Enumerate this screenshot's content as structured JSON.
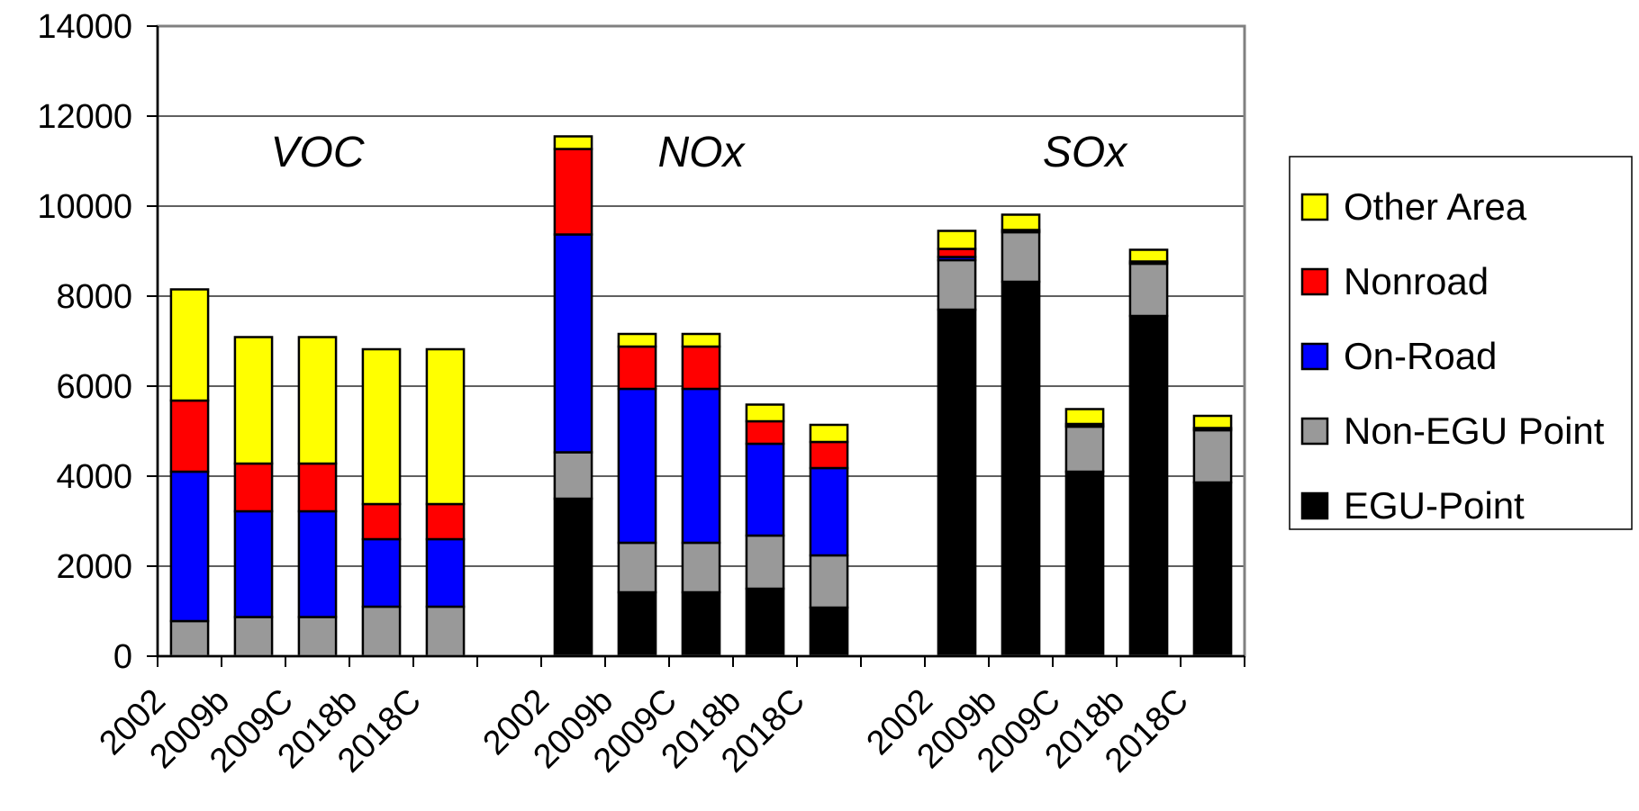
{
  "chart_data": {
    "type": "bar",
    "stacked": true,
    "ylim": [
      0,
      14000
    ],
    "yticks": [
      0,
      2000,
      4000,
      6000,
      8000,
      10000,
      12000,
      14000
    ],
    "grid": true,
    "legend_position": "right",
    "stack_order": [
      "EGU-Point",
      "Non-EGU Point",
      "On-Road",
      "Nonroad",
      "Other Area"
    ],
    "legend_order": [
      "Other Area",
      "Nonroad",
      "On-Road",
      "Non-EGU Point",
      "EGU-Point"
    ],
    "colors": {
      "EGU-Point": "#000000",
      "Non-EGU Point": "#999999",
      "On-Road": "#0000ff",
      "Nonroad": "#ff0000",
      "Other Area": "#ffff00"
    },
    "groups": [
      {
        "label": "VOC",
        "bars": [
          {
            "category": "2002",
            "values": {
              "EGU-Point": 0,
              "Non-EGU Point": 780,
              "On-Road": 3320,
              "Nonroad": 1580,
              "Other Area": 2470
            }
          },
          {
            "category": "2009b",
            "values": {
              "EGU-Point": 0,
              "Non-EGU Point": 870,
              "On-Road": 2350,
              "Nonroad": 1060,
              "Other Area": 2810
            }
          },
          {
            "category": "2009C",
            "values": {
              "EGU-Point": 0,
              "Non-EGU Point": 870,
              "On-Road": 2350,
              "Nonroad": 1060,
              "Other Area": 2810
            }
          },
          {
            "category": "2018b",
            "values": {
              "EGU-Point": 0,
              "Non-EGU Point": 1100,
              "On-Road": 1500,
              "Nonroad": 780,
              "Other Area": 3440
            }
          },
          {
            "category": "2018C",
            "values": {
              "EGU-Point": 0,
              "Non-EGU Point": 1100,
              "On-Road": 1500,
              "Nonroad": 780,
              "Other Area": 3440
            }
          }
        ]
      },
      {
        "label": "NOx",
        "bars": [
          {
            "category": "2002",
            "values": {
              "EGU-Point": 3500,
              "Non-EGU Point": 1030,
              "On-Road": 4840,
              "Nonroad": 1900,
              "Other Area": 280
            }
          },
          {
            "category": "2009b",
            "values": {
              "EGU-Point": 1420,
              "Non-EGU Point": 1100,
              "On-Road": 3420,
              "Nonroad": 940,
              "Other Area": 280
            }
          },
          {
            "category": "2009C",
            "values": {
              "EGU-Point": 1420,
              "Non-EGU Point": 1100,
              "On-Road": 3420,
              "Nonroad": 940,
              "Other Area": 280
            }
          },
          {
            "category": "2018b",
            "values": {
              "EGU-Point": 1500,
              "Non-EGU Point": 1180,
              "On-Road": 2040,
              "Nonroad": 500,
              "Other Area": 370
            }
          },
          {
            "category": "2018C",
            "values": {
              "EGU-Point": 1080,
              "Non-EGU Point": 1160,
              "On-Road": 1940,
              "Nonroad": 580,
              "Other Area": 380
            }
          }
        ]
      },
      {
        "label": "SOx",
        "bars": [
          {
            "category": "2002",
            "values": {
              "EGU-Point": 7700,
              "Non-EGU Point": 1100,
              "On-Road": 70,
              "Nonroad": 180,
              "Other Area": 400
            }
          },
          {
            "category": "2009b",
            "values": {
              "EGU-Point": 8320,
              "Non-EGU Point": 1100,
              "On-Road": 20,
              "Nonroad": 30,
              "Other Area": 340
            }
          },
          {
            "category": "2009C",
            "values": {
              "EGU-Point": 4100,
              "Non-EGU Point": 1000,
              "On-Road": 20,
              "Nonroad": 40,
              "Other Area": 330
            }
          },
          {
            "category": "2018b",
            "values": {
              "EGU-Point": 7560,
              "Non-EGU Point": 1160,
              "On-Road": 20,
              "Nonroad": 30,
              "Other Area": 260
            }
          },
          {
            "category": "2018C",
            "values": {
              "EGU-Point": 3860,
              "Non-EGU Point": 1160,
              "On-Road": 20,
              "Nonroad": 30,
              "Other Area": 270
            }
          }
        ]
      }
    ]
  }
}
